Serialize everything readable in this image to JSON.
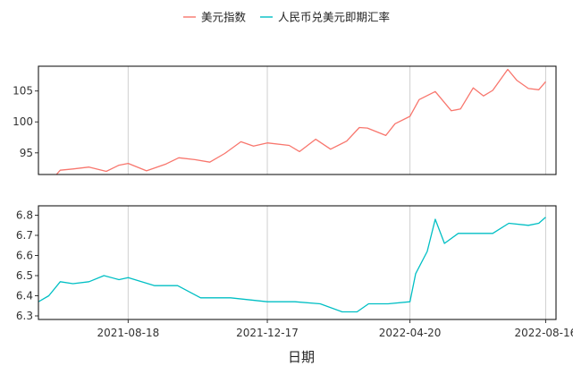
{
  "chart_data": {
    "type": "line",
    "xlabel": "日期",
    "x_ticks": [
      "2021-08-18",
      "2021-12-17",
      "2022-04-20",
      "2022-08-16"
    ],
    "x_range": [
      "2021-06-01",
      "2022-08-25"
    ],
    "grid": "vertical lines at x ticks",
    "legend": {
      "placement": "top-center"
    },
    "panels": [
      {
        "series": {
          "name": "美元指数",
          "color": "#F8766D"
        },
        "ylim": [
          91.5,
          109
        ],
        "y_ticks": [
          95,
          100,
          105
        ],
        "points": [
          [
            "2021-06-01",
            90.0
          ],
          [
            "2021-06-10",
            90.1
          ],
          [
            "2021-06-20",
            92.2
          ],
          [
            "2021-07-01",
            92.4
          ],
          [
            "2021-07-15",
            92.7
          ],
          [
            "2021-07-30",
            92.0
          ],
          [
            "2021-08-10",
            93.0
          ],
          [
            "2021-08-18",
            93.3
          ],
          [
            "2021-09-03",
            92.1
          ],
          [
            "2021-09-20",
            93.2
          ],
          [
            "2021-10-01",
            94.2
          ],
          [
            "2021-10-15",
            93.9
          ],
          [
            "2021-10-28",
            93.5
          ],
          [
            "2021-11-10",
            94.9
          ],
          [
            "2021-11-24",
            96.8
          ],
          [
            "2021-12-05",
            96.1
          ],
          [
            "2021-12-17",
            96.6
          ],
          [
            "2022-01-05",
            96.2
          ],
          [
            "2022-01-14",
            95.2
          ],
          [
            "2022-01-28",
            97.2
          ],
          [
            "2022-02-10",
            95.6
          ],
          [
            "2022-02-24",
            96.9
          ],
          [
            "2022-03-07",
            99.1
          ],
          [
            "2022-03-14",
            99.0
          ],
          [
            "2022-03-30",
            97.8
          ],
          [
            "2022-04-07",
            99.7
          ],
          [
            "2022-04-20",
            100.9
          ],
          [
            "2022-04-28",
            103.6
          ],
          [
            "2022-05-12",
            104.9
          ],
          [
            "2022-05-26",
            101.8
          ],
          [
            "2022-06-03",
            102.1
          ],
          [
            "2022-06-14",
            105.5
          ],
          [
            "2022-06-23",
            104.2
          ],
          [
            "2022-07-01",
            105.1
          ],
          [
            "2022-07-14",
            108.5
          ],
          [
            "2022-07-22",
            106.7
          ],
          [
            "2022-08-01",
            105.4
          ],
          [
            "2022-08-10",
            105.2
          ],
          [
            "2022-08-16",
            106.5
          ]
        ]
      },
      {
        "series": {
          "name": "人民币兑美元即期汇率",
          "color": "#00BFC4"
        },
        "ylim": [
          6.3,
          6.82
        ],
        "y_ticks": [
          6.3,
          6.4,
          6.5,
          6.6,
          6.7,
          6.8
        ],
        "points": [
          [
            "2021-06-01",
            6.37
          ],
          [
            "2021-06-10",
            6.4
          ],
          [
            "2021-06-20",
            6.47
          ],
          [
            "2021-07-01",
            6.46
          ],
          [
            "2021-07-15",
            6.47
          ],
          [
            "2021-07-28",
            6.5
          ],
          [
            "2021-08-10",
            6.48
          ],
          [
            "2021-08-18",
            6.49
          ],
          [
            "2021-09-10",
            6.45
          ],
          [
            "2021-09-30",
            6.45
          ],
          [
            "2021-10-20",
            6.39
          ],
          [
            "2021-11-15",
            6.39
          ],
          [
            "2021-12-17",
            6.37
          ],
          [
            "2022-01-10",
            6.37
          ],
          [
            "2022-02-01",
            6.36
          ],
          [
            "2022-02-20",
            6.32
          ],
          [
            "2022-03-05",
            6.32
          ],
          [
            "2022-03-15",
            6.36
          ],
          [
            "2022-04-01",
            6.36
          ],
          [
            "2022-04-20",
            6.37
          ],
          [
            "2022-04-25",
            6.51
          ],
          [
            "2022-05-05",
            6.62
          ],
          [
            "2022-05-12",
            6.78
          ],
          [
            "2022-05-20",
            6.66
          ],
          [
            "2022-06-01",
            6.71
          ],
          [
            "2022-06-14",
            6.71
          ],
          [
            "2022-07-01",
            6.71
          ],
          [
            "2022-07-15",
            6.76
          ],
          [
            "2022-08-01",
            6.75
          ],
          [
            "2022-08-10",
            6.76
          ],
          [
            "2022-08-16",
            6.79
          ]
        ]
      }
    ]
  }
}
